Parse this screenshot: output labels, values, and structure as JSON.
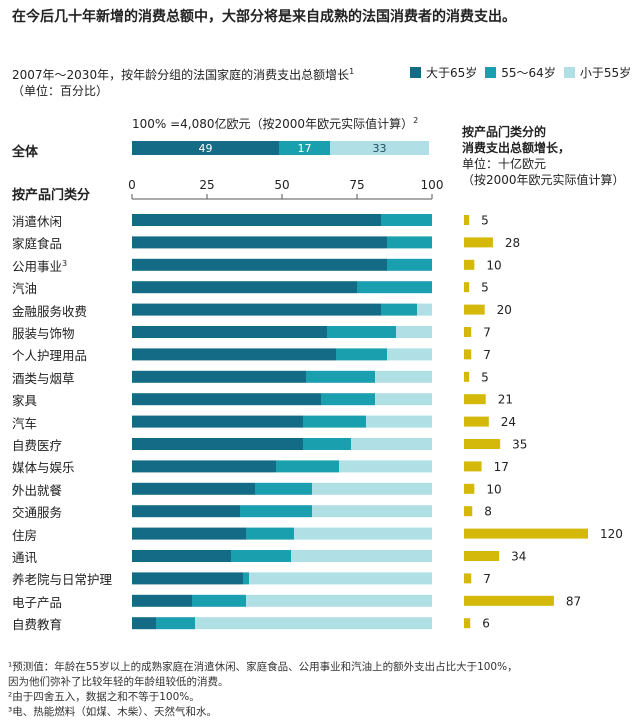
{
  "headline": "在今后几十年新增的消费总额中，大部分将是来自成熟的法国消费者的消费支出。",
  "subtitle_line1": "2007年～2030年，按年龄分组的法国家庭的消费支出总额增长",
  "subtitle_sup": "1",
  "subtitle_line2": "（单位：百分比）",
  "legend": [
    {
      "label": "大于65岁",
      "color": "#146b85"
    },
    {
      "label": "55～64岁",
      "color": "#1a9fae"
    },
    {
      "label": "小于55岁",
      "color": "#b0dfe6"
    }
  ],
  "note_100": "100% =4,080亿欧元（按2000年欧元实际值计算）",
  "note_100_sup": "2",
  "total_label": "全体",
  "category_header": "按产品门类分",
  "right_title_line1": "按产品门类分的",
  "right_title_line2": "消费支出总额增长，",
  "right_title_line3": "单位：十亿欧元",
  "right_title_line4": "（按2000年欧元实际值计算）",
  "footnotes": [
    "¹预测值：年龄在55岁以上的成熟家庭在消遣休闲、家庭食品、公用事业和汽油上的额外支出占比大于100%，",
    "   因为他们弥补了比较年轻的年龄组较低的消费。",
    "²由于四舍五入，数据之和不等于100%。",
    "³电、热能燃料（如煤、木柴）、天然气和水。"
  ],
  "chart_data": {
    "type": "bar",
    "orientation": "horizontal",
    "stacked": true,
    "xlim": [
      0,
      100
    ],
    "xticks": [
      "0",
      "25",
      "50",
      "75",
      "100"
    ],
    "total": {
      "name": "全体",
      "values": [
        49,
        17,
        33
      ],
      "labels": [
        "49",
        "17",
        "33"
      ]
    },
    "series_names": [
      "大于65岁",
      "55～64岁",
      "小于55岁"
    ],
    "categories": [
      "消遣休闲",
      "家庭食品",
      "公用事业",
      "汽油",
      "金融服务收费",
      "服装与饰物",
      "个人护理用品",
      "酒类与烟草",
      "家具",
      "汽车",
      "自费医疗",
      "媒体与娱乐",
      "外出就餐",
      "交通服务",
      "住房",
      "通讯",
      "养老院与日常护理",
      "电子产品",
      "自费教育"
    ],
    "category_sup": [
      "",
      "",
      "3",
      "",
      "",
      "",
      "",
      "",
      "",
      "",
      "",
      "",
      "",
      "",
      "",
      "",
      "",
      "",
      ""
    ],
    "series": [
      {
        "name": "大于65岁",
        "values": [
          83,
          85,
          85,
          75,
          83,
          65,
          68,
          58,
          63,
          57,
          57,
          48,
          41,
          36,
          38,
          33,
          37,
          20,
          8
        ]
      },
      {
        "name": "55～64岁",
        "values": [
          17,
          15,
          15,
          25,
          12,
          23,
          17,
          23,
          18,
          21,
          16,
          21,
          19,
          24,
          16,
          20,
          2,
          18,
          13
        ]
      },
      {
        "name": "小于55岁",
        "values": [
          0,
          0,
          0,
          0,
          5,
          12,
          15,
          19,
          19,
          22,
          27,
          31,
          40,
          40,
          46,
          47,
          61,
          62,
          79
        ]
      }
    ],
    "growth": {
      "unit": "十亿欧元",
      "values": [
        5,
        28,
        10,
        5,
        20,
        7,
        7,
        5,
        21,
        24,
        35,
        17,
        10,
        8,
        120,
        34,
        7,
        87,
        6
      ],
      "color": "#d4b90a"
    }
  }
}
